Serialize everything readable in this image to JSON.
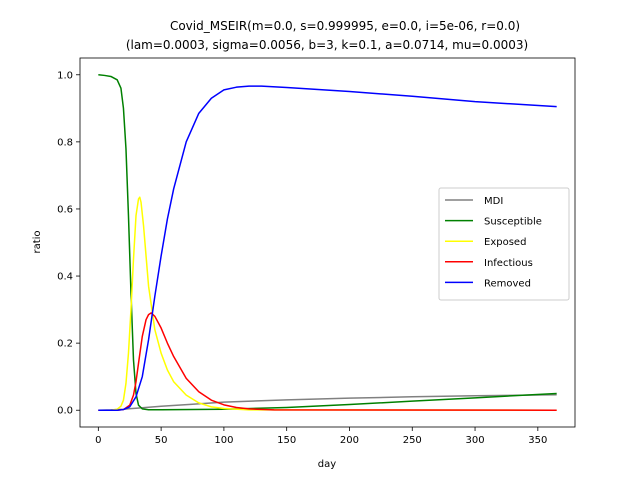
{
  "chart_data": {
    "type": "line",
    "title": "Covid_MSEIR(m=0.0, s=0.999995, e=0.0, i=5e-06, r=0.0)",
    "subtitle": "(lam=0.0003, sigma=0.0056, b=3, k=0.1, a=0.0714, mu=0.0003)",
    "xlabel": "day",
    "ylabel": "ratio",
    "xlim": [
      -14.6,
      379.6
    ],
    "ylim": [
      -0.05,
      1.05
    ],
    "xticks": [
      0,
      50,
      100,
      150,
      200,
      250,
      300,
      350
    ],
    "yticks": [
      0.0,
      0.2,
      0.4,
      0.6,
      0.8,
      1.0
    ],
    "xtick_labels": [
      "0",
      "50",
      "100",
      "150",
      "200",
      "250",
      "300",
      "350"
    ],
    "ytick_labels": [
      "0.0",
      "0.2",
      "0.4",
      "0.6",
      "0.8",
      "1.0"
    ],
    "grid": false,
    "legend_position": "center-right",
    "series": [
      {
        "name": "MDI",
        "color": "#808080",
        "x": [
          0,
          10,
          20,
          30,
          40,
          50,
          75,
          100,
          150,
          200,
          250,
          300,
          365
        ],
        "y": [
          0.0,
          0.001,
          0.003,
          0.006,
          0.009,
          0.012,
          0.018,
          0.024,
          0.031,
          0.036,
          0.04,
          0.043,
          0.046
        ]
      },
      {
        "name": "Susceptible",
        "color": "#008000",
        "x": [
          0,
          5,
          10,
          15,
          18,
          20,
          22,
          24,
          26,
          28,
          30,
          32,
          35,
          40,
          50,
          75,
          100,
          150,
          200,
          250,
          300,
          365
        ],
        "y": [
          1.0,
          0.998,
          0.995,
          0.985,
          0.96,
          0.9,
          0.78,
          0.58,
          0.35,
          0.15,
          0.05,
          0.015,
          0.004,
          0.0015,
          0.0015,
          0.002,
          0.003,
          0.008,
          0.017,
          0.027,
          0.037,
          0.05
        ]
      },
      {
        "name": "Exposed",
        "color": "#ffff00",
        "x": [
          0,
          10,
          15,
          18,
          20,
          22,
          24,
          26,
          28,
          30,
          32,
          33,
          34,
          36,
          38,
          40,
          45,
          50,
          55,
          60,
          70,
          80,
          90,
          100,
          120,
          365
        ],
        "y": [
          0.0,
          0.0,
          0.003,
          0.012,
          0.03,
          0.08,
          0.17,
          0.3,
          0.45,
          0.58,
          0.63,
          0.635,
          0.62,
          0.55,
          0.46,
          0.37,
          0.24,
          0.17,
          0.12,
          0.085,
          0.045,
          0.022,
          0.01,
          0.005,
          0.001,
          0.0
        ]
      },
      {
        "name": "Infectious",
        "color": "#ff0000",
        "x": [
          0,
          15,
          20,
          25,
          28,
          30,
          32,
          35,
          38,
          40,
          42,
          45,
          50,
          55,
          60,
          70,
          80,
          90,
          100,
          110,
          120,
          140,
          365
        ],
        "y": [
          0.0,
          0.0,
          0.002,
          0.015,
          0.045,
          0.085,
          0.14,
          0.22,
          0.27,
          0.285,
          0.29,
          0.28,
          0.245,
          0.2,
          0.16,
          0.095,
          0.055,
          0.03,
          0.016,
          0.008,
          0.004,
          0.001,
          0.0
        ]
      },
      {
        "name": "Removed",
        "color": "#0000ff",
        "x": [
          0,
          15,
          20,
          25,
          30,
          35,
          40,
          45,
          50,
          55,
          60,
          70,
          80,
          90,
          100,
          110,
          120,
          130,
          150,
          200,
          250,
          300,
          365
        ],
        "y": [
          0.0,
          0.0,
          0.002,
          0.01,
          0.04,
          0.1,
          0.21,
          0.34,
          0.46,
          0.57,
          0.66,
          0.8,
          0.885,
          0.93,
          0.955,
          0.963,
          0.966,
          0.966,
          0.962,
          0.95,
          0.936,
          0.92,
          0.905
        ]
      }
    ]
  }
}
